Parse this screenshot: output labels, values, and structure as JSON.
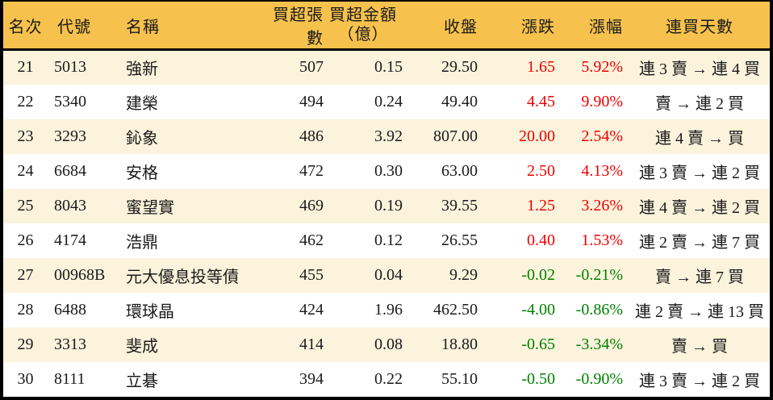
{
  "theme": {
    "header_bg": "#F6C24D",
    "row_alt_bg": "#FCF3DC",
    "up_color": "#EE0000",
    "down_color": "#008000"
  },
  "columns": {
    "rank": "名次",
    "code": "代號",
    "name": "名稱",
    "shares": "買超張數",
    "amount_line1": "買超金額",
    "amount_line2": "（億）",
    "close": "收盤",
    "change": "漲跌",
    "pct": "漲幅",
    "streak": "連買天數"
  },
  "rows": [
    {
      "rank": "21",
      "code": "5013",
      "name": "強新",
      "shares": "507",
      "amount": "0.15",
      "close": "29.50",
      "change": "1.65",
      "pct": "5.92%",
      "trend": "up",
      "streak": "連 3 賣 → 連 4 買"
    },
    {
      "rank": "22",
      "code": "5340",
      "name": "建榮",
      "shares": "494",
      "amount": "0.24",
      "close": "49.40",
      "change": "4.45",
      "pct": "9.90%",
      "trend": "up",
      "streak": "賣 → 連 2 買"
    },
    {
      "rank": "23",
      "code": "3293",
      "name": "鈊象",
      "shares": "486",
      "amount": "3.92",
      "close": "807.00",
      "change": "20.00",
      "pct": "2.54%",
      "trend": "up",
      "streak": "連 4 賣 → 買"
    },
    {
      "rank": "24",
      "code": "6684",
      "name": "安格",
      "shares": "472",
      "amount": "0.30",
      "close": "63.00",
      "change": "2.50",
      "pct": "4.13%",
      "trend": "up",
      "streak": "連 3 賣 → 連 2 買"
    },
    {
      "rank": "25",
      "code": "8043",
      "name": "蜜望實",
      "shares": "469",
      "amount": "0.19",
      "close": "39.55",
      "change": "1.25",
      "pct": "3.26%",
      "trend": "up",
      "streak": "連 4 賣 → 連 2 買"
    },
    {
      "rank": "26",
      "code": "4174",
      "name": "浩鼎",
      "shares": "462",
      "amount": "0.12",
      "close": "26.55",
      "change": "0.40",
      "pct": "1.53%",
      "trend": "up",
      "streak": "連 2 賣 → 連 7 買"
    },
    {
      "rank": "27",
      "code": "00968B",
      "name": "元大優息投等債",
      "shares": "455",
      "amount": "0.04",
      "close": "9.29",
      "change": "-0.02",
      "pct": "-0.21%",
      "trend": "down",
      "streak": "賣 → 連 7 買"
    },
    {
      "rank": "28",
      "code": "6488",
      "name": "環球晶",
      "shares": "424",
      "amount": "1.96",
      "close": "462.50",
      "change": "-4.00",
      "pct": "-0.86%",
      "trend": "down",
      "streak": "連 2 賣 → 連 13 買"
    },
    {
      "rank": "29",
      "code": "3313",
      "name": "斐成",
      "shares": "414",
      "amount": "0.08",
      "close": "18.80",
      "change": "-0.65",
      "pct": "-3.34%",
      "trend": "down",
      "streak": "賣 → 買"
    },
    {
      "rank": "30",
      "code": "8111",
      "name": "立碁",
      "shares": "394",
      "amount": "0.22",
      "close": "55.10",
      "change": "-0.50",
      "pct": "-0.90%",
      "trend": "down",
      "streak": "連 3 賣 → 連 2 買"
    }
  ]
}
